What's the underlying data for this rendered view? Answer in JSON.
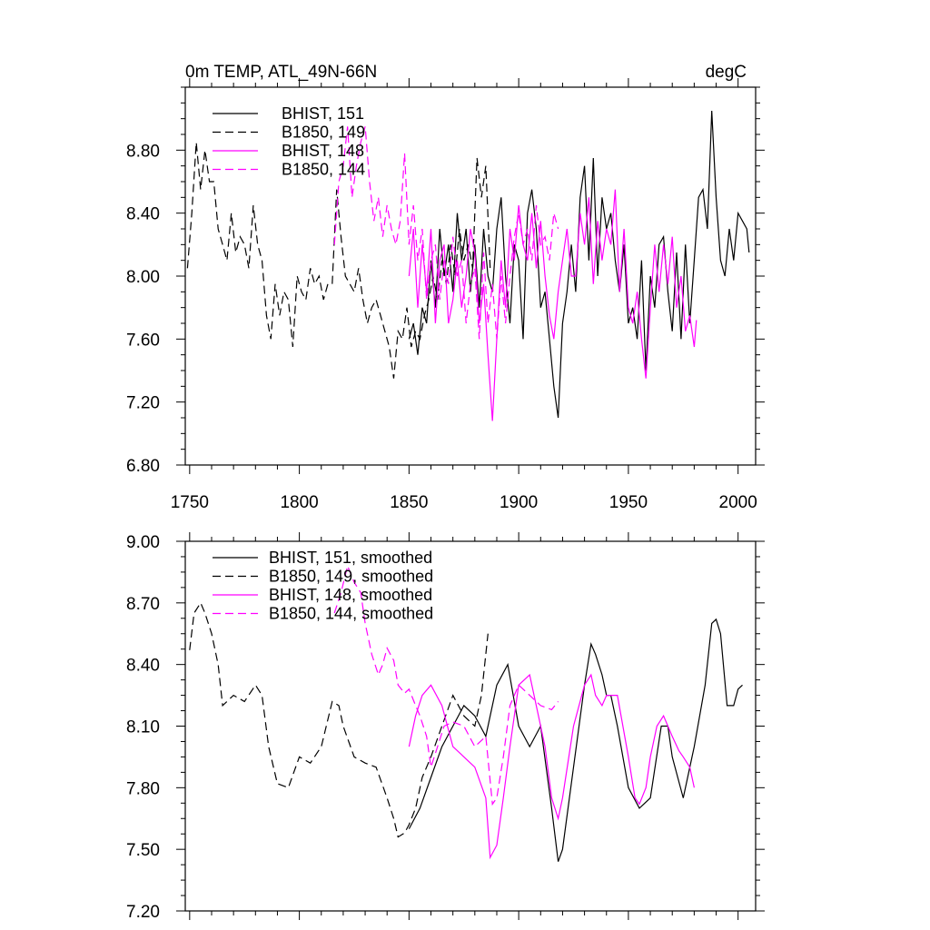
{
  "chart_data": [
    {
      "type": "line",
      "title": "0m TEMP, ATL_49N-66N",
      "title_right": "degC",
      "xlabel": "",
      "ylabel": "",
      "xlim": [
        1748,
        2008
      ],
      "ylim": [
        6.8,
        9.2
      ],
      "x_ticks": [
        1750,
        1800,
        1850,
        1900,
        1950,
        2000
      ],
      "y_ticks": [
        6.8,
        7.2,
        7.6,
        8.0,
        8.4,
        8.8
      ],
      "y_tick_labels": [
        "6.80",
        "7.20",
        "7.60",
        "8.00",
        "8.40",
        "8.80"
      ],
      "x_tick_labels": [
        "1750",
        "1800",
        "1850",
        "1900",
        "1950",
        "2000"
      ],
      "grid": false,
      "legend_position": "top-left",
      "colors": {
        "black": "#000000",
        "magenta": "#ff00ff"
      },
      "series": [
        {
          "name": "BHIST, 151",
          "color": "#000000",
          "dash": "solid",
          "x": [
            1850,
            1852,
            1854,
            1856,
            1858,
            1860,
            1862,
            1864,
            1866,
            1868,
            1870,
            1872,
            1874,
            1876,
            1878,
            1880,
            1882,
            1884,
            1886,
            1888,
            1890,
            1892,
            1894,
            1896,
            1898,
            1900,
            1902,
            1904,
            1906,
            1908,
            1910,
            1912,
            1914,
            1916,
            1918,
            1920,
            1922,
            1924,
            1926,
            1928,
            1930,
            1932,
            1934,
            1936,
            1938,
            1940,
            1942,
            1944,
            1946,
            1948,
            1950,
            1952,
            1954,
            1956,
            1958,
            1960,
            1962,
            1964,
            1966,
            1968,
            1970,
            1972,
            1974,
            1976,
            1978,
            1980,
            1982,
            1984,
            1986,
            1988,
            1990,
            1992,
            1994,
            1996,
            1998,
            2000,
            2002,
            2004,
            2005
          ],
          "y": [
            7.6,
            7.7,
            7.5,
            7.8,
            7.7,
            8.1,
            7.8,
            8.3,
            8.0,
            8.2,
            7.9,
            8.4,
            8.1,
            8.3,
            7.9,
            8.2,
            7.8,
            8.3,
            8.0,
            7.9,
            8.3,
            8.5,
            8.0,
            7.7,
            8.2,
            8.1,
            7.6,
            8.4,
            8.55,
            8.3,
            7.8,
            7.9,
            7.6,
            7.3,
            7.1,
            7.7,
            7.9,
            8.2,
            7.9,
            8.5,
            8.7,
            8.1,
            8.75,
            8.0,
            8.5,
            8.3,
            8.4,
            8.1,
            7.9,
            8.2,
            7.7,
            7.8,
            7.6,
            8.1,
            7.4,
            8.0,
            7.8,
            8.2,
            8.25,
            7.9,
            7.65,
            8.15,
            7.6,
            8.2,
            7.7,
            8.1,
            8.5,
            8.55,
            8.3,
            9.05,
            8.5,
            8.1,
            8.0,
            8.3,
            8.1,
            8.4,
            8.35,
            8.3,
            8.15
          ]
        },
        {
          "name": "B1850, 149",
          "color": "#000000",
          "dash": "dashed",
          "x": [
            1749,
            1751,
            1753,
            1755,
            1757,
            1759,
            1761,
            1763,
            1765,
            1767,
            1769,
            1771,
            1773,
            1775,
            1777,
            1779,
            1781,
            1783,
            1785,
            1787,
            1789,
            1791,
            1793,
            1795,
            1797,
            1799,
            1801,
            1803,
            1805,
            1807,
            1809,
            1811,
            1813,
            1815,
            1817,
            1819,
            1821,
            1823,
            1825,
            1827,
            1829,
            1831,
            1833,
            1835,
            1837,
            1839,
            1841,
            1843,
            1845,
            1847,
            1849,
            1851,
            1853,
            1855,
            1857,
            1859,
            1861,
            1863,
            1865,
            1867,
            1869,
            1871,
            1873,
            1875,
            1877,
            1879,
            1881,
            1883,
            1885,
            1887
          ],
          "y": [
            8.05,
            8.4,
            8.85,
            8.55,
            8.8,
            8.6,
            8.6,
            8.3,
            8.2,
            8.1,
            8.4,
            8.15,
            8.25,
            8.2,
            8.05,
            8.45,
            8.2,
            8.1,
            7.75,
            7.6,
            7.95,
            7.75,
            7.9,
            7.85,
            7.55,
            8.0,
            7.9,
            7.85,
            8.05,
            7.95,
            8.0,
            7.85,
            7.95,
            7.95,
            8.55,
            8.25,
            8.0,
            7.95,
            7.9,
            8.05,
            7.85,
            7.7,
            7.8,
            7.85,
            7.75,
            7.65,
            7.55,
            7.35,
            7.65,
            7.6,
            7.8,
            7.55,
            7.65,
            7.6,
            7.75,
            7.85,
            8.0,
            7.85,
            8.1,
            7.95,
            8.2,
            8.0,
            8.3,
            8.1,
            8.2,
            8.05,
            8.75,
            8.5,
            8.7,
            8.05
          ]
        },
        {
          "name": "BHIST, 148",
          "color": "#ff00ff",
          "dash": "solid",
          "x": [
            1850,
            1852,
            1854,
            1856,
            1858,
            1860,
            1862,
            1864,
            1866,
            1868,
            1870,
            1872,
            1874,
            1876,
            1878,
            1880,
            1882,
            1884,
            1886,
            1888,
            1890,
            1892,
            1894,
            1896,
            1898,
            1900,
            1902,
            1904,
            1906,
            1908,
            1910,
            1912,
            1914,
            1916,
            1918,
            1920,
            1922,
            1924,
            1926,
            1928,
            1930,
            1932,
            1934,
            1936,
            1938,
            1940,
            1942,
            1944,
            1946,
            1948,
            1950,
            1952,
            1954,
            1956,
            1958,
            1960,
            1962,
            1964,
            1966,
            1968,
            1970,
            1972,
            1974,
            1976,
            1978,
            1980,
            1981
          ],
          "y": [
            8.0,
            8.3,
            7.8,
            8.2,
            7.9,
            8.3,
            7.7,
            8.1,
            8.2,
            7.7,
            7.85,
            8.1,
            7.8,
            8.0,
            8.3,
            8.15,
            7.7,
            7.95,
            7.5,
            7.08,
            7.6,
            8.1,
            7.8,
            8.3,
            8.1,
            8.45,
            8.2,
            8.1,
            8.4,
            8.05,
            8.35,
            8.0,
            7.75,
            7.6,
            7.9,
            8.1,
            8.3,
            8.0,
            8.0,
            8.4,
            8.2,
            8.5,
            7.95,
            8.35,
            8.1,
            8.3,
            8.2,
            8.55,
            7.9,
            8.3,
            7.8,
            7.7,
            7.9,
            7.6,
            7.35,
            7.8,
            8.2,
            7.9,
            8.2,
            7.95,
            8.25,
            7.8,
            8.0,
            7.65,
            7.75,
            7.55,
            7.72
          ]
        },
        {
          "name": "B1850, 144",
          "color": "#ff00ff",
          "dash": "dashed",
          "x": [
            1816,
            1818,
            1820,
            1822,
            1824,
            1826,
            1828,
            1830,
            1832,
            1834,
            1836,
            1838,
            1840,
            1842,
            1844,
            1846,
            1848,
            1850,
            1852,
            1854,
            1856,
            1858,
            1860,
            1862,
            1864,
            1866,
            1868,
            1870,
            1872,
            1874,
            1876,
            1878,
            1880,
            1882,
            1884,
            1886,
            1888,
            1890,
            1892,
            1894,
            1896,
            1898,
            1900,
            1902,
            1904,
            1906,
            1908,
            1910,
            1912,
            1914,
            1916,
            1918
          ],
          "y": [
            8.2,
            8.6,
            8.7,
            8.95,
            8.5,
            8.7,
            8.85,
            8.95,
            8.6,
            8.35,
            8.5,
            8.25,
            8.45,
            8.3,
            8.2,
            8.35,
            8.78,
            8.2,
            8.45,
            8.1,
            8.3,
            7.85,
            8.1,
            8.2,
            7.85,
            8.1,
            7.95,
            8.25,
            8.0,
            8.1,
            7.7,
            7.95,
            8.05,
            7.6,
            8.15,
            7.7,
            7.95,
            7.6,
            8.0,
            7.7,
            8.0,
            8.25,
            8.4,
            8.2,
            8.3,
            8.1,
            8.45,
            8.2,
            8.25,
            8.1,
            8.4,
            8.3
          ]
        }
      ]
    },
    {
      "type": "line",
      "title": "",
      "xlabel": "",
      "ylabel": "",
      "xlim": [
        1748,
        2008
      ],
      "ylim": [
        7.2,
        9.0
      ],
      "y_ticks": [
        7.2,
        7.5,
        7.8,
        8.1,
        8.4,
        8.7,
        9.0
      ],
      "y_tick_labels": [
        "7.20",
        "7.50",
        "7.80",
        "8.10",
        "8.40",
        "8.70",
        "9.00"
      ],
      "grid": false,
      "legend_position": "top-left",
      "series": [
        {
          "name": "BHIST, 151, smoothed",
          "color": "#000000",
          "dash": "solid",
          "x": [
            1850,
            1855,
            1860,
            1865,
            1870,
            1875,
            1880,
            1885,
            1890,
            1895,
            1900,
            1905,
            1910,
            1915,
            1918,
            1920,
            1925,
            1930,
            1933,
            1935,
            1938,
            1940,
            1942,
            1945,
            1950,
            1955,
            1960,
            1965,
            1968,
            1970,
            1975,
            1980,
            1985,
            1988,
            1990,
            1992,
            1995,
            1998,
            2000,
            2002
          ],
          "y": [
            7.6,
            7.7,
            7.85,
            8.0,
            8.1,
            8.2,
            8.15,
            8.05,
            8.3,
            8.4,
            8.1,
            8.0,
            8.1,
            7.7,
            7.44,
            7.5,
            7.9,
            8.3,
            8.5,
            8.45,
            8.35,
            8.25,
            8.25,
            8.1,
            7.8,
            7.7,
            7.75,
            8.1,
            8.1,
            7.95,
            7.75,
            8.0,
            8.3,
            8.6,
            8.62,
            8.55,
            8.2,
            8.2,
            8.28,
            8.3
          ]
        },
        {
          "name": "B1850, 149, smoothed",
          "color": "#000000",
          "dash": "dashed",
          "x": [
            1750,
            1752,
            1755,
            1757,
            1760,
            1763,
            1765,
            1770,
            1775,
            1780,
            1783,
            1786,
            1790,
            1795,
            1800,
            1805,
            1810,
            1815,
            1818,
            1820,
            1825,
            1830,
            1835,
            1840,
            1843,
            1845,
            1848,
            1850,
            1853,
            1856,
            1860,
            1865,
            1870,
            1875,
            1880,
            1883,
            1886
          ],
          "y": [
            8.47,
            8.65,
            8.7,
            8.65,
            8.55,
            8.4,
            8.2,
            8.25,
            8.22,
            8.3,
            8.25,
            8.0,
            7.82,
            7.8,
            7.95,
            7.92,
            8.0,
            8.22,
            8.2,
            8.1,
            7.95,
            7.92,
            7.9,
            7.75,
            7.65,
            7.56,
            7.58,
            7.62,
            7.7,
            7.85,
            7.95,
            8.1,
            8.25,
            8.15,
            8.1,
            8.25,
            8.55
          ]
        },
        {
          "name": "BHIST, 148, smoothed",
          "color": "#ff00ff",
          "dash": "solid",
          "x": [
            1850,
            1853,
            1856,
            1860,
            1865,
            1870,
            1875,
            1880,
            1885,
            1887,
            1890,
            1893,
            1896,
            1900,
            1905,
            1910,
            1912,
            1915,
            1918,
            1920,
            1925,
            1930,
            1933,
            1935,
            1938,
            1940,
            1945,
            1950,
            1953,
            1955,
            1958,
            1960,
            1963,
            1966,
            1968,
            1970,
            1973,
            1975,
            1978,
            1980
          ],
          "y": [
            8.0,
            8.15,
            8.25,
            8.3,
            8.2,
            8.0,
            7.95,
            7.9,
            7.75,
            7.46,
            7.52,
            7.75,
            8.0,
            8.3,
            8.35,
            8.1,
            8.0,
            7.75,
            7.65,
            7.75,
            8.1,
            8.3,
            8.35,
            8.25,
            8.2,
            8.25,
            8.25,
            7.95,
            7.75,
            7.72,
            7.8,
            7.95,
            8.1,
            8.15,
            8.1,
            8.05,
            7.98,
            7.95,
            7.9,
            7.8
          ]
        },
        {
          "name": "B1850, 144, smoothed",
          "color": "#ff00ff",
          "dash": "dashed",
          "x": [
            1816,
            1819,
            1822,
            1825,
            1828,
            1830,
            1833,
            1836,
            1838,
            1840,
            1843,
            1845,
            1848,
            1850,
            1853,
            1855,
            1858,
            1860,
            1863,
            1866,
            1870,
            1875,
            1880,
            1885,
            1888,
            1890,
            1893,
            1896,
            1900,
            1905,
            1910,
            1915,
            1918
          ],
          "y": [
            8.65,
            8.75,
            8.88,
            8.8,
            8.75,
            8.6,
            8.45,
            8.35,
            8.4,
            8.48,
            8.42,
            8.3,
            8.26,
            8.28,
            8.2,
            8.15,
            8.05,
            7.9,
            8.0,
            8.1,
            8.12,
            8.1,
            8.0,
            8.05,
            7.72,
            7.75,
            7.95,
            8.2,
            8.3,
            8.25,
            8.2,
            8.18,
            8.22
          ]
        }
      ]
    }
  ]
}
